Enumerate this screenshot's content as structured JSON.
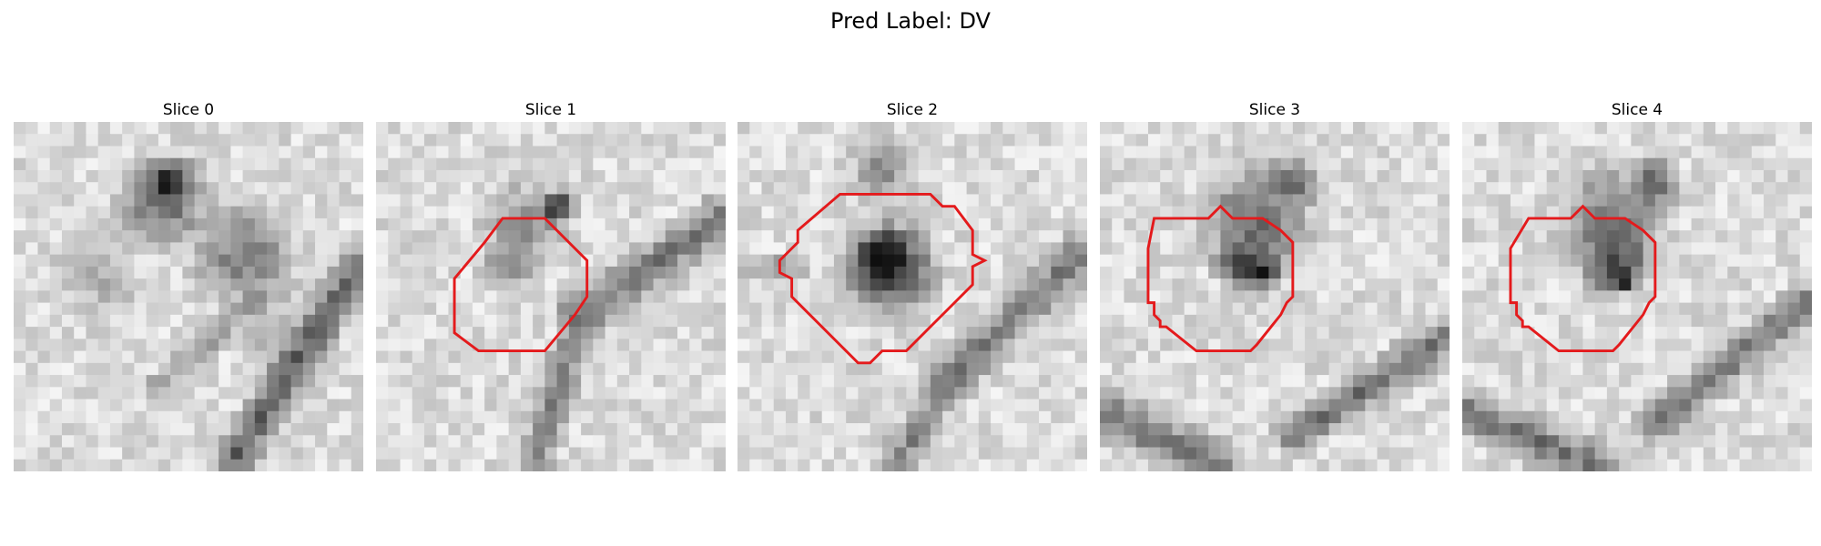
{
  "figure": {
    "title": "Pred Label: DV"
  },
  "panels": [
    {
      "title": "Slice 0",
      "image": "grayscale-microscopy-slice",
      "contour_color": "#e41a1c",
      "contour": [],
      "blobs": [
        {
          "cx": 12.5,
          "cy": 6.5,
          "r": 5.5,
          "v": 0.42
        },
        {
          "cx": 13,
          "cy": 5,
          "r": 2.5,
          "v": 0.1
        },
        {
          "cx": 7,
          "cy": 13,
          "r": 5,
          "v": 0.7
        },
        {
          "cx": 19,
          "cy": 11,
          "r": 6,
          "v": 0.5
        },
        {
          "cx": 23,
          "cy": 18,
          "r": 6,
          "v": 0.72
        }
      ],
      "ridges": [
        {
          "x1": 28.5,
          "y1": 12,
          "x2": 18,
          "y2": 28.5,
          "w": 2.2,
          "v": 0.35
        },
        {
          "x1": 21,
          "y1": 14,
          "x2": 12,
          "y2": 22,
          "w": 1.6,
          "v": 0.62
        }
      ]
    },
    {
      "title": "Slice 1",
      "image": "grayscale-microscopy-slice",
      "contour_color": "#e41a1c",
      "contour": [
        [
          10.5,
          8
        ],
        [
          14,
          8
        ],
        [
          17.5,
          11.5
        ],
        [
          17.5,
          14.5
        ],
        [
          16.5,
          16
        ],
        [
          14,
          19
        ],
        [
          8.5,
          19
        ],
        [
          6.5,
          17.5
        ],
        [
          6.5,
          13
        ],
        [
          9,
          10
        ]
      ],
      "blobs": [
        {
          "cx": 12.5,
          "cy": 8.5,
          "r": 5,
          "v": 0.55
        },
        {
          "cx": 15,
          "cy": 7,
          "r": 2,
          "v": 0.2
        },
        {
          "cx": 11,
          "cy": 12,
          "r": 3,
          "v": 0.5
        }
      ],
      "ridges": [
        {
          "x1": 28.5,
          "y1": 8,
          "x2": 17,
          "y2": 16,
          "w": 2.5,
          "v": 0.42
        },
        {
          "x1": 17,
          "y1": 16,
          "x2": 13,
          "y2": 28.5,
          "w": 2.0,
          "v": 0.5
        }
      ]
    },
    {
      "title": "Slice 2",
      "image": "grayscale-microscopy-slice",
      "contour_color": "#e41a1c",
      "contour": [
        [
          10.5,
          6
        ],
        [
          16,
          6
        ],
        [
          17,
          7
        ],
        [
          18,
          7
        ],
        [
          19.5,
          9
        ],
        [
          19.5,
          11
        ],
        [
          20.5,
          11.5
        ],
        [
          19.5,
          12
        ],
        [
          19.5,
          13.5
        ],
        [
          17.5,
          15.5
        ],
        [
          14,
          19
        ],
        [
          12,
          19
        ],
        [
          11,
          20
        ],
        [
          10,
          20
        ],
        [
          9,
          19
        ],
        [
          4.5,
          14.5
        ],
        [
          4.5,
          13
        ],
        [
          3.5,
          12.5
        ],
        [
          3.5,
          11.5
        ],
        [
          5,
          10
        ],
        [
          5,
          9
        ],
        [
          8.5,
          6
        ]
      ],
      "blobs": [
        {
          "cx": 12.5,
          "cy": 12,
          "r": 5.5,
          "v": 0.15
        },
        {
          "cx": 12,
          "cy": 11,
          "r": 2.5,
          "v": 0.05
        },
        {
          "cx": 12,
          "cy": 4,
          "r": 4,
          "v": 0.55
        }
      ],
      "ridges": [
        {
          "x1": 28.5,
          "y1": 11,
          "x2": 18,
          "y2": 21,
          "w": 2.5,
          "v": 0.45
        },
        {
          "x1": 18,
          "y1": 21,
          "x2": 13,
          "y2": 28.5,
          "w": 2.0,
          "v": 0.5
        },
        {
          "x1": 0,
          "y1": 12,
          "x2": 5,
          "y2": 12,
          "w": 1.5,
          "v": 0.6
        }
      ]
    },
    {
      "title": "Slice 3",
      "image": "grayscale-microscopy-slice",
      "contour_color": "#e41a1c",
      "contour": [
        [
          4.5,
          8
        ],
        [
          9,
          8
        ],
        [
          10,
          7
        ],
        [
          11,
          8
        ],
        [
          13.5,
          8
        ],
        [
          15,
          9
        ],
        [
          16,
          10
        ],
        [
          16,
          14.5
        ],
        [
          15.5,
          15
        ],
        [
          15,
          16
        ],
        [
          13,
          18.5
        ],
        [
          12.5,
          19
        ],
        [
          8,
          19
        ],
        [
          5.5,
          17
        ],
        [
          5,
          17
        ],
        [
          5,
          16.5
        ],
        [
          4.5,
          16
        ],
        [
          4.5,
          15
        ],
        [
          4,
          15
        ],
        [
          4,
          10.5
        ]
      ],
      "blobs": [
        {
          "cx": 12.5,
          "cy": 11.5,
          "r": 4,
          "v": 0.12
        },
        {
          "cx": 13.5,
          "cy": 12.5,
          "r": 1.5,
          "v": 0.02
        },
        {
          "cx": 13,
          "cy": 8,
          "r": 6.5,
          "v": 0.45
        },
        {
          "cx": 16,
          "cy": 5,
          "r": 3,
          "v": 0.4
        }
      ],
      "ridges": [
        {
          "x1": 28.5,
          "y1": 18,
          "x2": 16,
          "y2": 26,
          "w": 2.2,
          "v": 0.42
        },
        {
          "x1": 0,
          "y1": 24,
          "x2": 10,
          "y2": 28.5,
          "w": 2.5,
          "v": 0.4
        }
      ]
    },
    {
      "title": "Slice 4",
      "image": "grayscale-microscopy-slice",
      "contour_color": "#e41a1c",
      "contour": [
        [
          5.5,
          8
        ],
        [
          9,
          8
        ],
        [
          10,
          7
        ],
        [
          11,
          8
        ],
        [
          13.5,
          8
        ],
        [
          15,
          9
        ],
        [
          16,
          10
        ],
        [
          16,
          14.5
        ],
        [
          15.5,
          15
        ],
        [
          15,
          16
        ],
        [
          13,
          18.5
        ],
        [
          12.5,
          19
        ],
        [
          8,
          19
        ],
        [
          5.5,
          17
        ],
        [
          5,
          17
        ],
        [
          5,
          16.5
        ],
        [
          4.5,
          16
        ],
        [
          4.5,
          15
        ],
        [
          4,
          15
        ],
        [
          4,
          10.5
        ]
      ],
      "blobs": [
        {
          "cx": 12.5,
          "cy": 11.5,
          "r": 4,
          "v": 0.14
        },
        {
          "cx": 13.5,
          "cy": 13,
          "r": 1.5,
          "v": 0.02
        },
        {
          "cx": 12.5,
          "cy": 8,
          "r": 6.5,
          "v": 0.48
        },
        {
          "cx": 16,
          "cy": 5,
          "r": 3,
          "v": 0.42
        }
      ],
      "ridges": [
        {
          "x1": 28.5,
          "y1": 15,
          "x2": 16,
          "y2": 25,
          "w": 2.2,
          "v": 0.45
        },
        {
          "x1": 0,
          "y1": 24,
          "x2": 11,
          "y2": 28.5,
          "w": 2.5,
          "v": 0.42
        }
      ]
    }
  ]
}
